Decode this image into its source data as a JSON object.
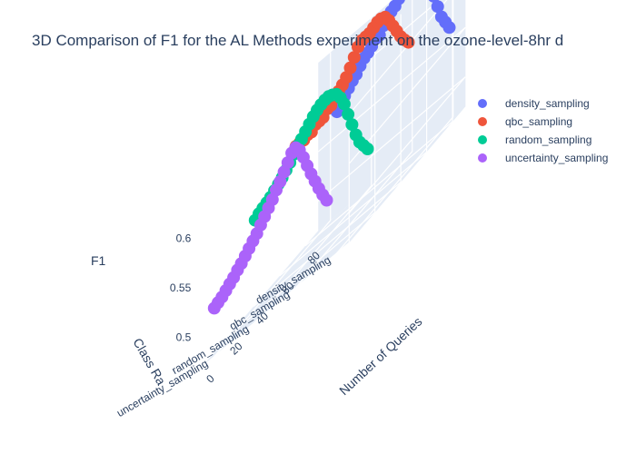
{
  "chart_data": {
    "type": "scatter",
    "title": "3D Comparison of F1 for the AL Methods experiment on the ozone-level-8hr d",
    "axes": {
      "x": {
        "label": "Number of Queries",
        "ticks": [
          "0",
          "20",
          "40",
          "60",
          "80"
        ],
        "range": [
          0,
          90
        ]
      },
      "y": {
        "label": "Class Ra",
        "ticks": [
          "density_sampling",
          "qbc_sampling",
          "random_sampling",
          "uncertainty_sampling"
        ]
      },
      "z": {
        "label": "F1",
        "ticks": [
          "0.5",
          "0.55",
          "0.6"
        ],
        "range": [
          0.47,
          0.64
        ]
      }
    },
    "legend_position": "top-right",
    "series": [
      {
        "name": "density_sampling",
        "color": "#636efa",
        "x": [
          0,
          3,
          6,
          9,
          12,
          15,
          18,
          21,
          24,
          27,
          30,
          33,
          36,
          39,
          42,
          45,
          48,
          51,
          54,
          57,
          60,
          63,
          66,
          69,
          72,
          75,
          78,
          81,
          84,
          87
        ],
        "y": [
          0.613,
          0.616,
          0.62,
          0.623,
          0.626,
          0.628,
          0.632,
          0.635,
          0.636,
          0.638,
          0.641,
          0.64,
          0.645,
          0.648,
          0.65,
          0.651,
          0.654,
          0.659,
          0.662,
          0.665,
          0.666,
          0.662,
          0.655,
          0.645,
          0.63,
          0.615,
          0.6,
          0.585,
          0.575,
          0.565
        ]
      },
      {
        "name": "qbc_sampling",
        "color": "#ef553b",
        "x": [
          0,
          3,
          6,
          9,
          12,
          15,
          18,
          21,
          24,
          27,
          30,
          33,
          36,
          39,
          42,
          45,
          48,
          51,
          54,
          57,
          60,
          63,
          66,
          69,
          72,
          75,
          78,
          81,
          84,
          87
        ],
        "y": [
          0.613,
          0.612,
          0.61,
          0.611,
          0.609,
          0.612,
          0.611,
          0.61,
          0.614,
          0.613,
          0.616,
          0.618,
          0.62,
          0.623,
          0.628,
          0.634,
          0.64,
          0.642,
          0.641,
          0.64,
          0.641,
          0.642,
          0.641,
          0.638,
          0.63,
          0.62,
          0.61,
          0.6,
          0.592,
          0.585
        ]
      },
      {
        "name": "random_sampling",
        "color": "#00cc96",
        "x": [
          0,
          3,
          6,
          9,
          12,
          15,
          18,
          21,
          24,
          27,
          30,
          33,
          36,
          39,
          42,
          45,
          48,
          51,
          54,
          57,
          60,
          63,
          66,
          69,
          72,
          75,
          78,
          81,
          84,
          87
        ],
        "y": [
          0.573,
          0.575,
          0.576,
          0.577,
          0.578,
          0.58,
          0.582,
          0.584,
          0.587,
          0.59,
          0.594,
          0.598,
          0.6,
          0.603,
          0.606,
          0.609,
          0.611,
          0.612,
          0.612,
          0.611,
          0.608,
          0.604,
          0.596,
          0.585,
          0.57,
          0.555,
          0.54,
          0.528,
          0.52,
          0.512
        ]
      },
      {
        "name": "uncertainty_sampling",
        "color": "#ab63fa",
        "x": [
          0,
          3,
          6,
          9,
          12,
          15,
          18,
          21,
          24,
          27,
          30,
          33,
          36,
          39,
          42,
          45,
          48,
          51,
          54,
          57,
          60,
          63,
          66,
          69,
          72,
          75,
          78,
          81,
          84,
          87
        ],
        "y": [
          0.519,
          0.52,
          0.521,
          0.523,
          0.525,
          0.527,
          0.53,
          0.532,
          0.535,
          0.538,
          0.541,
          0.544,
          0.548,
          0.552,
          0.556,
          0.56,
          0.565,
          0.569,
          0.574,
          0.579,
          0.584,
          0.585,
          0.578,
          0.566,
          0.553,
          0.54,
          0.528,
          0.516,
          0.505,
          0.495
        ]
      }
    ]
  }
}
